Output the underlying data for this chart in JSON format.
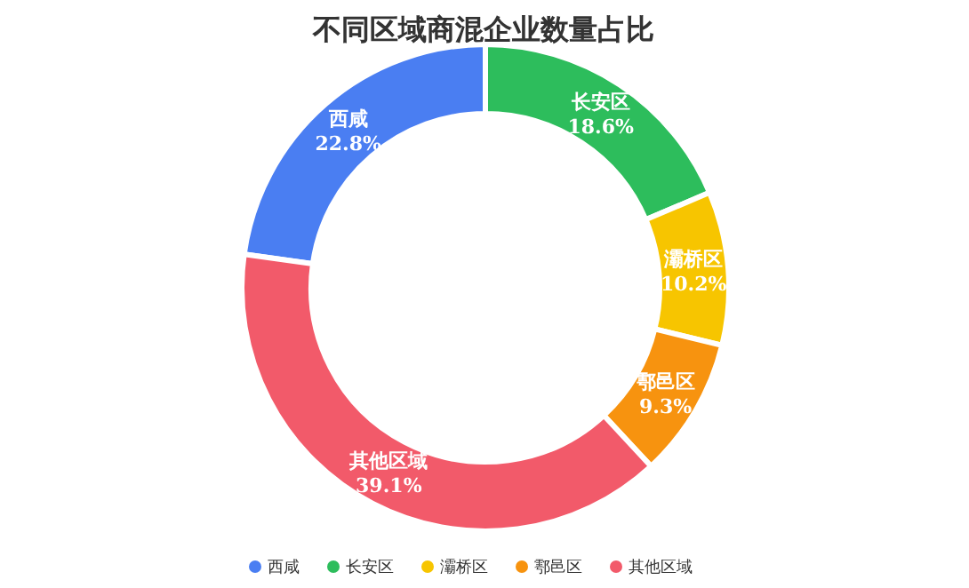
{
  "chart_data": {
    "type": "donut",
    "title": "不同区域商混企业数量占比",
    "categories": [
      "西咸",
      "长安区",
      "灞桥区",
      "鄠邑区",
      "其他区域"
    ],
    "values": [
      22.8,
      18.6,
      10.2,
      9.3,
      39.1
    ],
    "colors": [
      "#4a7ef2",
      "#2dbd5c",
      "#f7c500",
      "#f7930f",
      "#f25a6a"
    ],
    "value_labels": [
      "22.8%",
      "18.6%",
      "10.2%",
      "9.3%",
      "39.1%"
    ],
    "legend": "bottom"
  }
}
